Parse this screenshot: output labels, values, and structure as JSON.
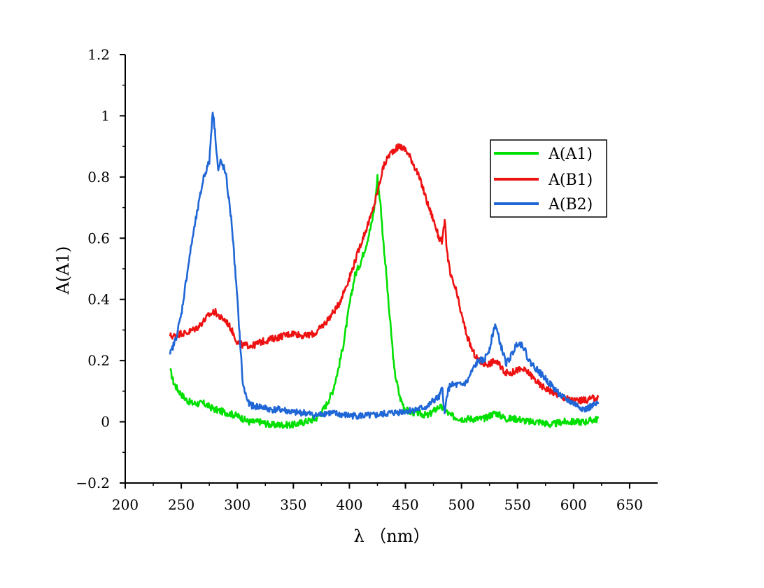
{
  "chart_data": {
    "type": "line",
    "title": "",
    "xlabel": "λ （nm）",
    "ylabel": "A(A1)",
    "xlim": [
      200,
      675
    ],
    "ylim": [
      -0.2,
      1.2
    ],
    "x_ticks": [
      200,
      250,
      300,
      350,
      400,
      450,
      500,
      550,
      600,
      650
    ],
    "x_tick_labels": [
      "200",
      "250",
      "300",
      "350",
      "400",
      "450",
      "500",
      "550",
      "600",
      "650"
    ],
    "y_ticks": [
      -0.2,
      0,
      0.2,
      0.4,
      0.6,
      0.8,
      1,
      1.2
    ],
    "y_tick_labels": [
      "−0.2",
      "0",
      "0.2",
      "0.4",
      "0.6",
      "0.8",
      "1",
      "1.2"
    ],
    "grid": false,
    "legend_position": "top-right",
    "series": [
      {
        "name": "A(A1)",
        "color": "#00e000",
        "x": [
          240,
          243,
          246,
          250,
          255,
          260,
          270,
          280,
          290,
          300,
          310,
          320,
          330,
          340,
          350,
          360,
          370,
          375,
          380,
          385,
          390,
          395,
          400,
          405,
          410,
          415,
          420,
          423,
          425,
          428,
          430,
          433,
          435,
          438,
          440,
          445,
          450,
          455,
          460,
          470,
          480,
          485,
          490,
          500,
          510,
          520,
          530,
          540,
          550,
          560,
          570,
          580,
          590,
          600,
          610,
          622
        ],
        "y": [
          0.17,
          0.13,
          0.11,
          0.09,
          0.07,
          0.06,
          0.06,
          0.04,
          0.03,
          0.02,
          0.0,
          0.0,
          -0.01,
          -0.01,
          -0.01,
          0.0,
          0.01,
          0.03,
          0.06,
          0.1,
          0.17,
          0.26,
          0.38,
          0.48,
          0.52,
          0.58,
          0.65,
          0.72,
          0.8,
          0.7,
          0.6,
          0.48,
          0.38,
          0.26,
          0.17,
          0.08,
          0.04,
          0.03,
          0.03,
          0.02,
          0.05,
          0.04,
          0.02,
          0.01,
          0.01,
          0.01,
          0.03,
          0.01,
          0.01,
          0.0,
          0.0,
          -0.01,
          0.0,
          0.0,
          0.0,
          0.01
        ]
      },
      {
        "name": "A(B1)",
        "color": "#ee1111",
        "x": [
          240,
          245,
          250,
          255,
          260,
          265,
          270,
          275,
          280,
          285,
          290,
          295,
          300,
          305,
          310,
          315,
          320,
          330,
          340,
          350,
          360,
          370,
          380,
          390,
          400,
          410,
          420,
          425,
          430,
          435,
          440,
          445,
          450,
          455,
          460,
          465,
          470,
          475,
          480,
          483,
          485,
          487,
          490,
          495,
          500,
          505,
          510,
          515,
          520,
          525,
          530,
          535,
          540,
          545,
          550,
          555,
          560,
          565,
          570,
          580,
          590,
          600,
          610,
          622
        ],
        "y": [
          0.28,
          0.28,
          0.29,
          0.29,
          0.3,
          0.31,
          0.33,
          0.35,
          0.36,
          0.34,
          0.33,
          0.3,
          0.26,
          0.25,
          0.25,
          0.25,
          0.26,
          0.27,
          0.28,
          0.29,
          0.28,
          0.29,
          0.33,
          0.38,
          0.47,
          0.58,
          0.68,
          0.75,
          0.83,
          0.87,
          0.89,
          0.9,
          0.89,
          0.86,
          0.82,
          0.77,
          0.71,
          0.66,
          0.6,
          0.59,
          0.66,
          0.56,
          0.48,
          0.43,
          0.35,
          0.28,
          0.23,
          0.2,
          0.19,
          0.19,
          0.2,
          0.18,
          0.16,
          0.16,
          0.17,
          0.17,
          0.16,
          0.14,
          0.12,
          0.1,
          0.08,
          0.07,
          0.07,
          0.08
        ]
      },
      {
        "name": "A(B2)",
        "color": "#1f66d6",
        "x": [
          240,
          245,
          250,
          255,
          260,
          265,
          270,
          275,
          278,
          280,
          283,
          285,
          288,
          290,
          295,
          300,
          305,
          310,
          315,
          320,
          330,
          340,
          350,
          360,
          370,
          380,
          400,
          420,
          440,
          460,
          470,
          475,
          480,
          483,
          485,
          487,
          490,
          495,
          500,
          505,
          510,
          515,
          520,
          525,
          530,
          535,
          540,
          545,
          550,
          555,
          560,
          570,
          580,
          590,
          600,
          610,
          622
        ],
        "y": [
          0.22,
          0.27,
          0.35,
          0.48,
          0.6,
          0.7,
          0.8,
          0.85,
          1.02,
          0.95,
          0.82,
          0.85,
          0.83,
          0.8,
          0.65,
          0.4,
          0.12,
          0.06,
          0.05,
          0.05,
          0.04,
          0.04,
          0.03,
          0.03,
          0.02,
          0.03,
          0.02,
          0.02,
          0.03,
          0.04,
          0.05,
          0.07,
          0.08,
          0.11,
          0.02,
          0.09,
          0.12,
          0.12,
          0.12,
          0.13,
          0.17,
          0.2,
          0.2,
          0.24,
          0.32,
          0.25,
          0.19,
          0.22,
          0.26,
          0.25,
          0.2,
          0.16,
          0.12,
          0.08,
          0.06,
          0.04,
          0.06
        ]
      }
    ]
  }
}
